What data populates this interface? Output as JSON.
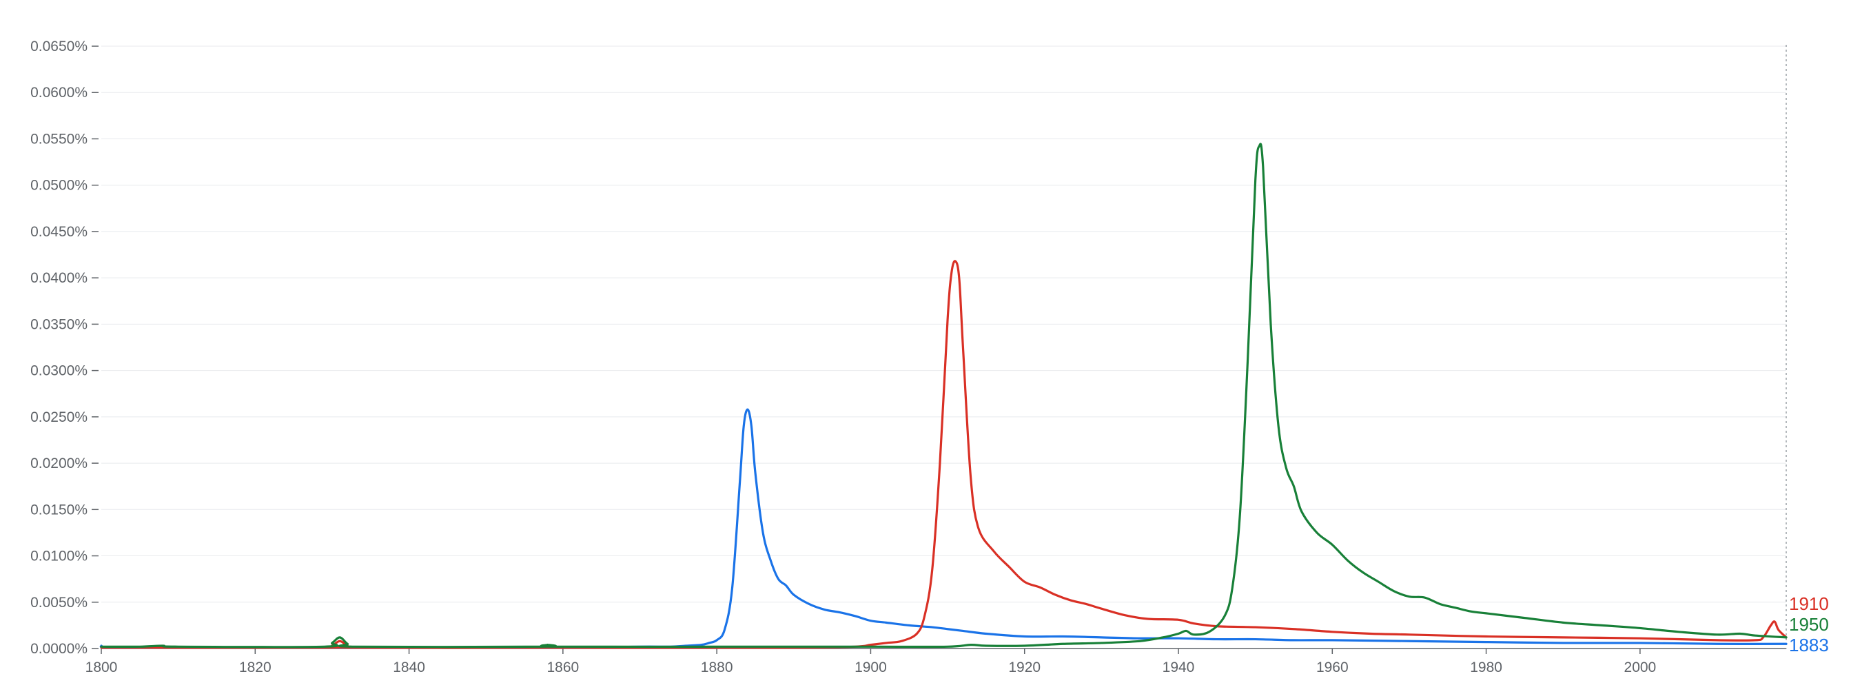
{
  "chart_data": {
    "type": "line",
    "title": "",
    "xlabel": "",
    "ylabel": "",
    "xlim": [
      1800,
      2019
    ],
    "ylim": [
      0,
      0.065
    ],
    "grid": true,
    "legend": "right-end labels",
    "y_ticks": [
      {
        "value": 0.0,
        "label": "0.0000%"
      },
      {
        "value": 0.005,
        "label": "0.0050%"
      },
      {
        "value": 0.01,
        "label": "0.0100%"
      },
      {
        "value": 0.015,
        "label": "0.0150%"
      },
      {
        "value": 0.02,
        "label": "0.0200%"
      },
      {
        "value": 0.025,
        "label": "0.0250%"
      },
      {
        "value": 0.03,
        "label": "0.0300%"
      },
      {
        "value": 0.035,
        "label": "0.0350%"
      },
      {
        "value": 0.04,
        "label": "0.0400%"
      },
      {
        "value": 0.045,
        "label": "0.0450%"
      },
      {
        "value": 0.05,
        "label": "0.0500%"
      },
      {
        "value": 0.055,
        "label": "0.0550%"
      },
      {
        "value": 0.06,
        "label": "0.0600%"
      },
      {
        "value": 0.065,
        "label": "0.0650%"
      }
    ],
    "x_ticks": [
      {
        "value": 1800,
        "label": "1800"
      },
      {
        "value": 1820,
        "label": "1820"
      },
      {
        "value": 1840,
        "label": "1840"
      },
      {
        "value": 1860,
        "label": "1860"
      },
      {
        "value": 1880,
        "label": "1880"
      },
      {
        "value": 1900,
        "label": "1900"
      },
      {
        "value": 1920,
        "label": "1920"
      },
      {
        "value": 1940,
        "label": "1940"
      },
      {
        "value": 1960,
        "label": "1960"
      },
      {
        "value": 1980,
        "label": "1980"
      },
      {
        "value": 2000,
        "label": "2000"
      }
    ],
    "series": [
      {
        "name": "1883",
        "color": "#1a73e8",
        "points": [
          [
            1800,
            0.0003
          ],
          [
            1801,
            0.0001
          ],
          [
            1810,
            0.0001
          ],
          [
            1830,
            0.0001
          ],
          [
            1860,
            0.0001
          ],
          [
            1870,
            0.0002
          ],
          [
            1874,
            0.0002
          ],
          [
            1876,
            0.0003
          ],
          [
            1878,
            0.0004
          ],
          [
            1879,
            0.0006
          ],
          [
            1880,
            0.0009
          ],
          [
            1881,
            0.002
          ],
          [
            1882,
            0.0065
          ],
          [
            1883,
            0.018
          ],
          [
            1883.5,
            0.024
          ],
          [
            1884,
            0.0258
          ],
          [
            1884.5,
            0.024
          ],
          [
            1885,
            0.019
          ],
          [
            1886,
            0.0125
          ],
          [
            1887,
            0.0095
          ],
          [
            1888,
            0.0075
          ],
          [
            1889,
            0.0068
          ],
          [
            1890,
            0.0058
          ],
          [
            1892,
            0.0048
          ],
          [
            1894,
            0.0042
          ],
          [
            1896,
            0.0039
          ],
          [
            1898,
            0.0035
          ],
          [
            1900,
            0.003
          ],
          [
            1902,
            0.0028
          ],
          [
            1905,
            0.0025
          ],
          [
            1908,
            0.0023
          ],
          [
            1910,
            0.0021
          ],
          [
            1912,
            0.0019
          ],
          [
            1915,
            0.0016
          ],
          [
            1920,
            0.0013
          ],
          [
            1925,
            0.0013
          ],
          [
            1930,
            0.0012
          ],
          [
            1935,
            0.0011
          ],
          [
            1940,
            0.0011
          ],
          [
            1945,
            0.001
          ],
          [
            1950,
            0.001
          ],
          [
            1955,
            0.0009
          ],
          [
            1960,
            0.0009
          ],
          [
            1970,
            0.0008
          ],
          [
            1980,
            0.0007
          ],
          [
            1990,
            0.0006
          ],
          [
            2000,
            0.0006
          ],
          [
            2010,
            0.0005
          ],
          [
            2019,
            0.0005
          ]
        ]
      },
      {
        "name": "1910",
        "color": "#d93025",
        "points": [
          [
            1800,
            0.0001
          ],
          [
            1829,
            0.0001
          ],
          [
            1830,
            0.0003
          ],
          [
            1831,
            0.0008
          ],
          [
            1832,
            0.0003
          ],
          [
            1833,
            0.0001
          ],
          [
            1857,
            0.0001
          ],
          [
            1858,
            0.0003
          ],
          [
            1859,
            0.0001
          ],
          [
            1880,
            0.0001
          ],
          [
            1890,
            0.0001
          ],
          [
            1898,
            0.0002
          ],
          [
            1900,
            0.0004
          ],
          [
            1902,
            0.0006
          ],
          [
            1904,
            0.0008
          ],
          [
            1906,
            0.0016
          ],
          [
            1907,
            0.0035
          ],
          [
            1908,
            0.0085
          ],
          [
            1909,
            0.02
          ],
          [
            1910,
            0.0355
          ],
          [
            1910.5,
            0.0405
          ],
          [
            1911,
            0.0418
          ],
          [
            1911.5,
            0.04
          ],
          [
            1912,
            0.0325
          ],
          [
            1913,
            0.0185
          ],
          [
            1914,
            0.013
          ],
          [
            1916,
            0.0105
          ],
          [
            1918,
            0.0088
          ],
          [
            1920,
            0.0072
          ],
          [
            1922,
            0.0066
          ],
          [
            1924,
            0.0058
          ],
          [
            1926,
            0.0052
          ],
          [
            1928,
            0.0048
          ],
          [
            1930,
            0.0043
          ],
          [
            1933,
            0.0036
          ],
          [
            1936,
            0.0032
          ],
          [
            1940,
            0.0031
          ],
          [
            1942,
            0.0027
          ],
          [
            1945,
            0.0024
          ],
          [
            1950,
            0.0023
          ],
          [
            1955,
            0.0021
          ],
          [
            1960,
            0.0018
          ],
          [
            1965,
            0.0016
          ],
          [
            1970,
            0.0015
          ],
          [
            1980,
            0.0013
          ],
          [
            1990,
            0.0012
          ],
          [
            2000,
            0.0011
          ],
          [
            2010,
            0.0009
          ],
          [
            2015,
            0.0009
          ],
          [
            2016,
            0.0012
          ],
          [
            2017,
            0.0025
          ],
          [
            2017.5,
            0.0029
          ],
          [
            2018,
            0.002
          ],
          [
            2019,
            0.0012
          ]
        ]
      },
      {
        "name": "1950",
        "color": "#188038",
        "points": [
          [
            1800,
            0.0002
          ],
          [
            1805,
            0.0002
          ],
          [
            1808,
            0.0003
          ],
          [
            1810,
            0.0002
          ],
          [
            1829,
            0.0002
          ],
          [
            1830,
            0.0006
          ],
          [
            1831,
            0.0012
          ],
          [
            1832,
            0.0005
          ],
          [
            1833,
            0.0002
          ],
          [
            1857,
            0.0002
          ],
          [
            1858,
            0.0004
          ],
          [
            1859,
            0.0002
          ],
          [
            1880,
            0.0002
          ],
          [
            1900,
            0.0002
          ],
          [
            1910,
            0.0002
          ],
          [
            1913,
            0.0004
          ],
          [
            1915,
            0.0003
          ],
          [
            1920,
            0.0003
          ],
          [
            1925,
            0.0005
          ],
          [
            1930,
            0.0006
          ],
          [
            1935,
            0.0008
          ],
          [
            1938,
            0.0012
          ],
          [
            1940,
            0.0016
          ],
          [
            1941,
            0.0019
          ],
          [
            1942,
            0.0015
          ],
          [
            1944,
            0.0018
          ],
          [
            1946,
            0.0035
          ],
          [
            1947,
            0.0065
          ],
          [
            1948,
            0.0145
          ],
          [
            1949,
            0.031
          ],
          [
            1950,
            0.0505
          ],
          [
            1950.5,
            0.0542
          ],
          [
            1951,
            0.052
          ],
          [
            1952,
            0.035
          ],
          [
            1953,
            0.024
          ],
          [
            1954,
            0.0195
          ],
          [
            1955,
            0.0175
          ],
          [
            1956,
            0.0148
          ],
          [
            1958,
            0.0125
          ],
          [
            1960,
            0.0112
          ],
          [
            1962,
            0.0095
          ],
          [
            1964,
            0.0082
          ],
          [
            1966,
            0.0072
          ],
          [
            1968,
            0.0062
          ],
          [
            1970,
            0.0056
          ],
          [
            1972,
            0.0055
          ],
          [
            1974,
            0.0048
          ],
          [
            1976,
            0.0044
          ],
          [
            1978,
            0.004
          ],
          [
            1980,
            0.0038
          ],
          [
            1985,
            0.0033
          ],
          [
            1990,
            0.0028
          ],
          [
            1995,
            0.0025
          ],
          [
            2000,
            0.0022
          ],
          [
            2005,
            0.0018
          ],
          [
            2010,
            0.0015
          ],
          [
            2013,
            0.0016
          ],
          [
            2015,
            0.0014
          ],
          [
            2019,
            0.0012
          ]
        ]
      }
    ]
  }
}
